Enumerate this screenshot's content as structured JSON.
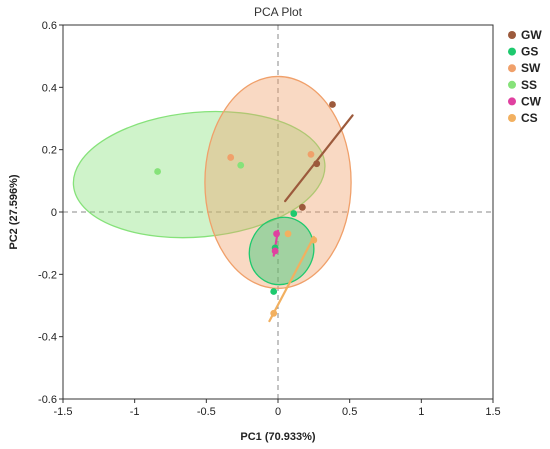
{
  "chart_data": {
    "type": "scatter",
    "title": "PCA Plot",
    "xlabel": "PC1 (70.933%)",
    "ylabel": "PC2 (27.596%)",
    "xlim": [
      -1.5,
      1.5
    ],
    "ylim": [
      -0.6,
      0.6
    ],
    "xticks": [
      "-1.5",
      "-1",
      "-0.5",
      "0",
      "0.5",
      "1",
      "1.5"
    ],
    "yticks": [
      "-0.6",
      "-0.4",
      "-0.2",
      "0",
      "0.2",
      "0.4",
      "0.6"
    ],
    "legend_position": "right",
    "series": [
      {
        "name": "GW",
        "color": "#9c5a3c",
        "points": [
          [
            0.38,
            0.345
          ],
          [
            0.27,
            0.155
          ],
          [
            0.17,
            0.015
          ]
        ],
        "ellipse": {
          "kind": "line",
          "from": [
            0.05,
            0.035
          ],
          "to": [
            0.52,
            0.31
          ]
        }
      },
      {
        "name": "GS",
        "color": "#1ec96e",
        "points": [
          [
            0.11,
            -0.005
          ],
          [
            -0.02,
            -0.115
          ],
          [
            -0.03,
            -0.255
          ]
        ],
        "ellipse": {
          "cx": 0.025,
          "cy": -0.125,
          "rx": 0.22,
          "ry": 0.11,
          "angle": 30
        }
      },
      {
        "name": "SW",
        "color": "#f0a06a",
        "points": [
          [
            -0.33,
            0.175
          ],
          [
            0.23,
            0.185
          ]
        ],
        "ellipse": {
          "cx": 0.0,
          "cy": 0.095,
          "rx": 0.51,
          "ry": 0.34,
          "angle": 0
        }
      },
      {
        "name": "SS",
        "color": "#86e27a",
        "points": [
          [
            -0.84,
            0.13
          ],
          [
            -0.26,
            0.15
          ]
        ],
        "ellipse": {
          "cx": -0.55,
          "cy": 0.12,
          "rx": 0.88,
          "ry": 0.2,
          "angle": -5
        }
      },
      {
        "name": "CW",
        "color": "#e040a0",
        "points": [
          [
            -0.01,
            -0.07
          ],
          [
            -0.02,
            -0.125
          ]
        ],
        "ellipse": {
          "kind": "line",
          "from": [
            -0.03,
            -0.14
          ],
          "to": [
            0.0,
            -0.06
          ]
        }
      },
      {
        "name": "CS",
        "color": "#f2b060",
        "points": [
          [
            -0.03,
            -0.325
          ],
          [
            0.07,
            -0.07
          ],
          [
            0.25,
            -0.09
          ]
        ],
        "ellipse": {
          "kind": "line",
          "from": [
            -0.06,
            -0.35
          ],
          "to": [
            0.25,
            -0.08
          ]
        }
      }
    ]
  }
}
